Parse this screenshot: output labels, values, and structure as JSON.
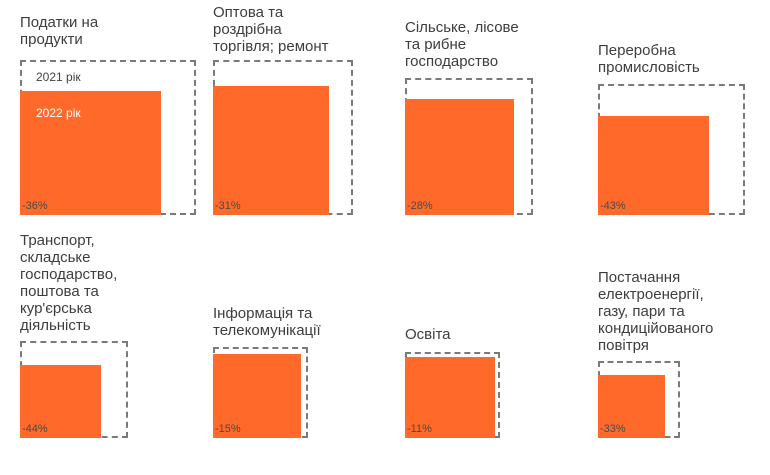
{
  "chart_data": {
    "type": "bar",
    "legend": [
      "2021 рік",
      "2022 рік"
    ],
    "series_names": [
      "2021 рік",
      "2022 рік"
    ],
    "colors": {
      "2021": "#7a7a7a",
      "2022": "#ff6a2b"
    },
    "items": [
      {
        "title": "Податки на\nпродукти",
        "v2021": 100,
        "v2022": 64,
        "change_label": "-36%"
      },
      {
        "title": "Оптова та\nроздрібна\nторгівля; ремонт",
        "v2021": 100,
        "v2022": 69,
        "change_label": "-31%"
      },
      {
        "title": "Сільське, лісове\nта рибне\nгосподарство",
        "v2021": 100,
        "v2022": 72,
        "change_label": "-28%"
      },
      {
        "title": "Переробна\nпромисловість",
        "v2021": 100,
        "v2022": 57,
        "change_label": "-43%"
      },
      {
        "title": "Транспорт,\nскладське\nгосподарство,\nпоштова та\nкур'єрська\nдіяльність",
        "v2021": 100,
        "v2022": 56,
        "change_label": "-44%"
      },
      {
        "title": "Інформація та\nтелекомунікації",
        "v2021": 100,
        "v2022": 85,
        "change_label": "-15%"
      },
      {
        "title": "Освіта",
        "v2021": 100,
        "v2022": 89,
        "change_label": "-11%"
      },
      {
        "title": "Постачання\nелектроенергії,\nгазу, пари та\nкондиційованого\nповітря",
        "v2021": 100,
        "v2022": 67,
        "change_label": "-33%"
      }
    ]
  }
}
